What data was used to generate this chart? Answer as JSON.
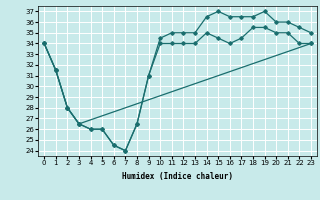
{
  "background_color": "#c8eaea",
  "grid_color": "#ffffff",
  "line_color": "#1a6e6e",
  "xlabel": "Humidex (Indice chaleur)",
  "ylim": [
    23.5,
    37.5
  ],
  "xlim": [
    -0.5,
    23.5
  ],
  "yticks": [
    24,
    25,
    26,
    27,
    28,
    29,
    30,
    31,
    32,
    33,
    34,
    35,
    36,
    37
  ],
  "xticks": [
    0,
    1,
    2,
    3,
    4,
    5,
    6,
    7,
    8,
    9,
    10,
    11,
    12,
    13,
    14,
    15,
    16,
    17,
    18,
    19,
    20,
    21,
    22,
    23
  ],
  "line1_x": [
    0,
    1,
    2,
    3,
    4,
    5,
    6,
    7,
    8,
    9,
    10,
    11,
    12,
    13,
    14,
    15,
    16,
    17,
    18,
    19,
    20,
    21,
    22,
    23
  ],
  "line1_y": [
    34,
    31.5,
    28,
    26.5,
    26,
    26,
    24.5,
    24,
    26.5,
    31,
    34,
    34,
    34,
    34,
    35,
    34.5,
    34,
    34.5,
    35.5,
    35.5,
    35,
    35,
    34,
    34
  ],
  "line2_x": [
    0,
    1,
    2,
    3,
    4,
    5,
    6,
    7,
    8,
    9,
    10,
    11,
    12,
    13,
    14,
    15,
    16,
    17,
    18,
    19,
    20,
    21,
    22,
    23
  ],
  "line2_y": [
    34,
    31.5,
    28,
    26.5,
    26,
    26,
    24.5,
    24,
    26.5,
    31,
    34.5,
    35,
    35,
    35,
    36.5,
    37,
    36.5,
    36.5,
    36.5,
    37,
    36,
    36,
    35.5,
    35
  ],
  "line3_x": [
    0,
    1,
    2,
    3,
    23
  ],
  "line3_y": [
    34,
    31.5,
    28,
    26.5,
    34
  ],
  "marker": "D",
  "marker_size": 1.8,
  "line_width": 0.9,
  "tick_fontsize": 5,
  "xlabel_fontsize": 5.5
}
